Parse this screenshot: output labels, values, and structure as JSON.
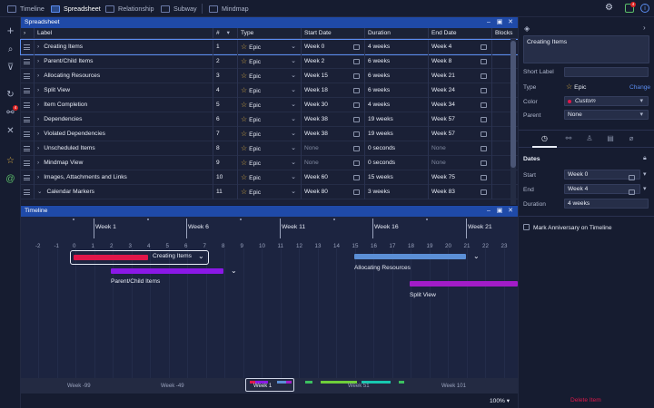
{
  "topbar": {
    "tabs": [
      {
        "label": "Timeline"
      },
      {
        "label": "Spreadsheet"
      },
      {
        "label": "Relationship"
      },
      {
        "label": "Subway"
      },
      {
        "label": "Mindmap"
      }
    ],
    "notification_count": "4"
  },
  "leftbar": {
    "badge": "4"
  },
  "spreadsheet": {
    "title": "Spreadsheet",
    "columns": [
      "Label",
      "#",
      "Type",
      "Start Date",
      "Duration",
      "End Date",
      "Blocks"
    ],
    "rows": [
      {
        "label": "Creating Items",
        "num": "1",
        "type": "Epic",
        "start": "Week 0",
        "duration": "4 weeks",
        "end": "Week 4"
      },
      {
        "label": "Parent/Child Items",
        "num": "2",
        "type": "Epic",
        "start": "Week 2",
        "duration": "6 weeks",
        "end": "Week 8"
      },
      {
        "label": "Allocating Resources",
        "num": "3",
        "type": "Epic",
        "start": "Week 15",
        "duration": "6 weeks",
        "end": "Week 21"
      },
      {
        "label": "Split View",
        "num": "4",
        "type": "Epic",
        "start": "Week 18",
        "duration": "6 weeks",
        "end": "Week 24"
      },
      {
        "label": "Item Completion",
        "num": "5",
        "type": "Epic",
        "start": "Week 30",
        "duration": "4 weeks",
        "end": "Week 34"
      },
      {
        "label": "Dependencies",
        "num": "6",
        "type": "Epic",
        "start": "Week 38",
        "duration": "19 weeks",
        "end": "Week 57"
      },
      {
        "label": "Violated Dependencies",
        "num": "7",
        "type": "Epic",
        "start": "Week 38",
        "duration": "19 weeks",
        "end": "Week 57"
      },
      {
        "label": "Unscheduled Items",
        "num": "8",
        "type": "Epic",
        "start": "None",
        "duration": "0 seconds",
        "end": "None"
      },
      {
        "label": "Mindmap View",
        "num": "9",
        "type": "Epic",
        "start": "None",
        "duration": "0 seconds",
        "end": "None"
      },
      {
        "label": "Images, Attachments and Links",
        "num": "10",
        "type": "Epic",
        "start": "Week 60",
        "duration": "15 weeks",
        "end": "Week 75"
      },
      {
        "label": "Calendar Markers",
        "num": "11",
        "type": "Epic",
        "start": "Week 80",
        "duration": "3 weeks",
        "end": "Week 83"
      }
    ]
  },
  "timeline": {
    "title": "Timeline",
    "weeks": [
      "Week 1",
      "Week 6",
      "Week 11",
      "Week 16",
      "Week 21"
    ],
    "day_numbers": [
      "-2",
      "-1",
      "0",
      "1",
      "2",
      "3",
      "4",
      "5",
      "6",
      "7",
      "8",
      "9",
      "10",
      "11",
      "12",
      "13",
      "14",
      "15",
      "16",
      "17",
      "18",
      "19",
      "20",
      "21",
      "22",
      "23"
    ],
    "bars": [
      {
        "label": "Creating Items",
        "color": "#e0174a"
      },
      {
        "label": "Parent/Child Items",
        "color": "#8a18e6"
      },
      {
        "label": "Allocating Resources",
        "color": "#5b8fd6"
      },
      {
        "label": "Split View",
        "color": "#a21cc8"
      }
    ],
    "minimap_labels": [
      "Week -99",
      "Week -49",
      "Week 1",
      "Week 51",
      "Week 101"
    ],
    "zoom": "100%"
  },
  "details": {
    "title": "Creating Items",
    "short_label_label": "Short Label",
    "type_label": "Type",
    "type_value": "Epic",
    "change_link": "Change",
    "color_label": "Color",
    "color_value": "Custom",
    "color_swatch": "#e0174a",
    "parent_label": "Parent",
    "parent_value": "None",
    "dates_label": "Dates",
    "start_label": "Start",
    "start_value": "Week 0",
    "end_label": "End",
    "end_value": "Week 4",
    "duration_label": "Duration",
    "duration_value": "4 weeks",
    "anniversary_label": "Mark Anniversary on Timeline",
    "delete_label": "Delete Item"
  }
}
